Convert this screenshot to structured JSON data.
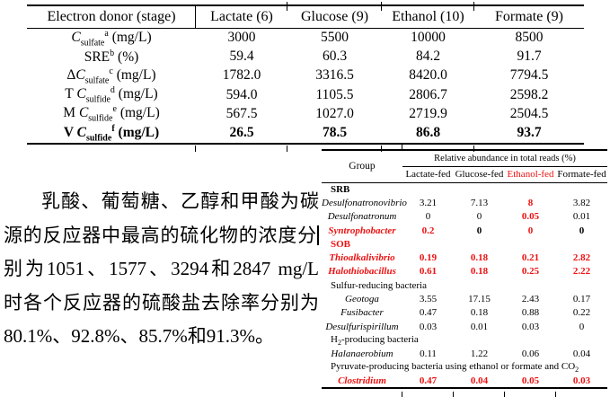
{
  "colors": {
    "red": "#ee1111",
    "text": "#000000",
    "background": "#ffffff"
  },
  "table1": {
    "columns": [
      "Electron donor (stage)",
      "Lactate (6)",
      "Glucose (9)",
      "Ethanol (10)",
      "Formate (9)"
    ],
    "rows": [
      {
        "pre": "",
        "c": "C",
        "sub": "sulfate",
        "sup": "a",
        "post": "(mg/L)",
        "bold": false,
        "values": [
          "3000",
          "5500",
          "10000",
          "8500"
        ]
      },
      {
        "pre": "SRE",
        "c": "",
        "sub": "",
        "sup": "b",
        "post": "(%)",
        "bold": false,
        "values": [
          "59.4",
          "60.3",
          "84.2",
          "91.7"
        ]
      },
      {
        "pre": "Δ",
        "c": "C",
        "sub": "sulfate",
        "sup": "c",
        "post": "(mg/L)",
        "bold": false,
        "values": [
          "1782.0",
          "3316.5",
          "8420.0",
          "7794.5"
        ]
      },
      {
        "pre": "T ",
        "c": "C",
        "sub": "sulfide",
        "sup": "d",
        "post": "(mg/L)",
        "bold": false,
        "values": [
          "594.0",
          "1105.5",
          "2806.7",
          "2598.2"
        ]
      },
      {
        "pre": "M ",
        "c": "C",
        "sub": "sulfide",
        "sup": "e",
        "post": "(mg/L)",
        "bold": false,
        "values": [
          "567.5",
          "1027.0",
          "2719.9",
          "2504.5"
        ]
      },
      {
        "pre": "V ",
        "c": "C",
        "sub": "sulfide",
        "sup": "f",
        "post": "(mg/L)",
        "bold": true,
        "values": [
          "26.5",
          "78.5",
          "86.8",
          "93.7"
        ]
      }
    ]
  },
  "paragraph": {
    "lines": [
      {
        "text": "乳酸、葡萄糖、乙醇和甲酸为碳",
        "indent": true,
        "cursor": false,
        "last": false
      },
      {
        "text": "源的反应器中最高的硫化物的浓度分",
        "indent": false,
        "cursor": true,
        "last": false
      },
      {
        "text": "别为1051、1577、3294和2847 mg/L",
        "indent": false,
        "cursor": false,
        "last": false
      },
      {
        "text": "时各个反应器的硫酸盐去除率分别为",
        "indent": false,
        "cursor": false,
        "last": false
      },
      {
        "text": "80.1%、92.8%、85.7%和91.3%。",
        "indent": false,
        "cursor": false,
        "last": true
      }
    ]
  },
  "table2": {
    "group_label": "Group",
    "span_label": "Relative abundance in total reads (%)",
    "columns": [
      {
        "label": "Lactate-fed",
        "red": false
      },
      {
        "label": "Glucose-fed",
        "red": false
      },
      {
        "label": "Ethanol-fed",
        "red": true
      },
      {
        "label": "Formate-fed",
        "red": false
      }
    ],
    "rows": [
      {
        "type": "group",
        "name": "SRB",
        "bold": true,
        "red": false
      },
      {
        "type": "taxon",
        "name": "Desulfonatronovibrio",
        "red": false,
        "values": [
          {
            "t": "3.21"
          },
          {
            "t": "7.13"
          },
          {
            "t": "8",
            "red": true
          },
          {
            "t": "3.82"
          }
        ]
      },
      {
        "type": "taxon",
        "name": "Desulfonatronum",
        "red": false,
        "values": [
          {
            "t": "0"
          },
          {
            "t": "0"
          },
          {
            "t": "0.05",
            "red": true
          },
          {
            "t": "0.01"
          }
        ]
      },
      {
        "type": "taxon",
        "name": "Syntrophobacter",
        "red": true,
        "values": [
          {
            "t": "0.2",
            "red": true
          },
          {
            "t": "0",
            "bold": true
          },
          {
            "t": "0",
            "red": true
          },
          {
            "t": "0",
            "bold": true
          }
        ]
      },
      {
        "type": "group",
        "name": "SOB",
        "bold": true,
        "red": true
      },
      {
        "type": "taxon",
        "name": "Thioalkalivibrio",
        "red": true,
        "values": [
          {
            "t": "0.19",
            "red": true
          },
          {
            "t": "0.18",
            "red": true
          },
          {
            "t": "0.21",
            "red": true
          },
          {
            "t": "2.82",
            "red": true
          }
        ]
      },
      {
        "type": "taxon",
        "name": "Halothiobacillus",
        "red": true,
        "values": [
          {
            "t": "0.61",
            "red": true
          },
          {
            "t": "0.18",
            "red": true
          },
          {
            "t": "0.25",
            "red": true
          },
          {
            "t": "2.22",
            "red": true
          }
        ]
      },
      {
        "type": "group",
        "name": "Sulfur-reducing bacteria",
        "bold": false,
        "red": false
      },
      {
        "type": "taxon",
        "name": "Geotoga",
        "red": false,
        "values": [
          {
            "t": "3.55"
          },
          {
            "t": "17.15"
          },
          {
            "t": "2.43"
          },
          {
            "t": "0.17"
          }
        ]
      },
      {
        "type": "taxon",
        "name": "Fusibacter",
        "red": false,
        "values": [
          {
            "t": "0.47"
          },
          {
            "t": "0.18"
          },
          {
            "t": "0.88"
          },
          {
            "t": "0.22"
          }
        ]
      },
      {
        "type": "taxon",
        "name": "Desulfurispirillum",
        "red": false,
        "values": [
          {
            "t": "0.03"
          },
          {
            "t": "0.01"
          },
          {
            "t": "0.03"
          },
          {
            "t": "0"
          }
        ]
      },
      {
        "type": "group",
        "name": "",
        "name_pre": "H",
        "name_sub": "2",
        "name_post": "-producing bacteria",
        "bold": false,
        "red": false
      },
      {
        "type": "taxon",
        "name": "Halanaerobium",
        "red": false,
        "values": [
          {
            "t": "0.11"
          },
          {
            "t": "1.22"
          },
          {
            "t": "0.06"
          },
          {
            "t": "0.04"
          }
        ]
      },
      {
        "type": "group",
        "name": "",
        "name_pre": "Pyruvate-producing bacteria using ethanol or formate and CO",
        "name_sub": "2",
        "name_post": "",
        "bold": false,
        "red": false
      },
      {
        "type": "taxon",
        "name": "Clostridium",
        "red": true,
        "values": [
          {
            "t": "0.47",
            "red": true
          },
          {
            "t": "0.04",
            "red": true
          },
          {
            "t": "0.05",
            "red": true
          },
          {
            "t": "0.03",
            "red": true
          }
        ]
      }
    ]
  }
}
